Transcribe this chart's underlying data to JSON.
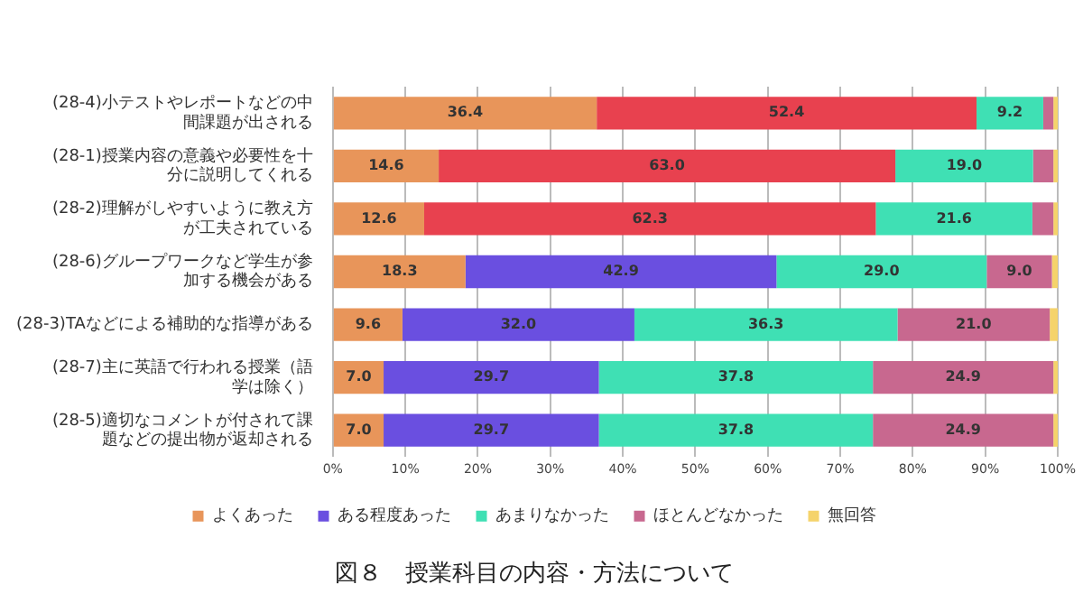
{
  "chart_data": {
    "type": "bar",
    "orientation": "horizontal",
    "stacked": true,
    "title": "図８　授業科目の内容・方法について",
    "categories": [
      "(28-4)小テストやレポートなどの中間課題が出される",
      "(28-1)授業内容の意義や必要性を十分に説明してくれる",
      "(28-2)理解がしやすいように教え方が工夫されている",
      "(28-6)グループワークなど学生が参加する機会がある",
      "(28-3)TAなどによる補助的な指導がある",
      "(28-7)主に英語で行われる授業（語学は除く）",
      "(28-5)適切なコメントが付されて課題などの提出物が返却される"
    ],
    "series": [
      {
        "name": "よくあった",
        "color": "#e8955a",
        "values": [
          36.4,
          14.6,
          12.6,
          18.3,
          9.6,
          7.0,
          7.0
        ],
        "value_labels": [
          "36.4",
          "14.6",
          "12.6",
          "18.3",
          "9.6",
          "7.0",
          "7.0"
        ]
      },
      {
        "name": "ある程度あった",
        "color": "#6a4fe0",
        "colors": [
          "#e8414f",
          "#e8414f",
          "#e8414f",
          "#6a4fe0",
          "#6a4fe0",
          "#6a4fe0",
          "#6a4fe0"
        ],
        "values": [
          52.4,
          63.0,
          62.3,
          42.9,
          32.0,
          29.7,
          29.7
        ],
        "value_labels": [
          "52.4",
          "63.0",
          "62.3",
          "42.9",
          "32.0",
          "29.7",
          "29.7"
        ]
      },
      {
        "name": "あまりなかった",
        "color": "#3fe0b4",
        "values": [
          9.2,
          19.0,
          21.6,
          29.0,
          36.3,
          37.8,
          37.8
        ],
        "value_labels": [
          "9.2",
          "19.0",
          "21.6",
          "29.0",
          "36.3",
          "37.8",
          "37.8"
        ]
      },
      {
        "name": "ほとんどなかった",
        "color": "#c8688f",
        "values": [
          1.4,
          2.8,
          2.9,
          9.0,
          21.0,
          24.9,
          24.9
        ],
        "value_labels": [
          null,
          null,
          null,
          "9.0",
          "21.0",
          "24.9",
          "24.9"
        ]
      },
      {
        "name": "無回答",
        "color": "#f5d36b",
        "values": [
          0.6,
          0.6,
          0.6,
          0.8,
          1.1,
          0.6,
          0.6
        ]
      }
    ],
    "xlim": [
      0,
      100
    ],
    "xticks": [
      {
        "value": 0,
        "label": "0%"
      },
      {
        "value": 10,
        "label": "10%"
      },
      {
        "value": 20,
        "label": "20%"
      },
      {
        "value": 30,
        "label": "30%"
      },
      {
        "value": 40,
        "label": "40%"
      },
      {
        "value": 50,
        "label": "50%"
      },
      {
        "value": 60,
        "label": "60%"
      },
      {
        "value": 70,
        "label": "70%"
      },
      {
        "value": 80,
        "label": "80%"
      },
      {
        "value": 90,
        "label": "90%"
      },
      {
        "value": 100,
        "label": "100%"
      }
    ],
    "grid": "x",
    "legend": "bottom"
  }
}
